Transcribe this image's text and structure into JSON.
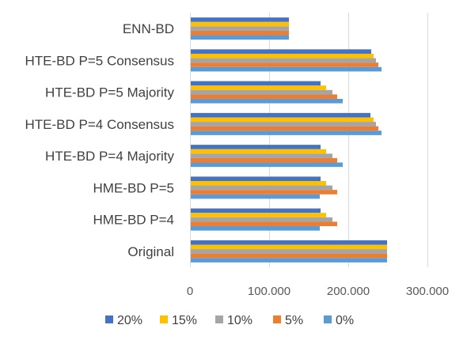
{
  "chart_data": {
    "type": "bar",
    "orientation": "horizontal",
    "categories": [
      "Original",
      "HME-BD P=4",
      "HME-BD P=5",
      "HTE-BD P=4 Majority",
      "HTE-BD P=4 Consensus",
      "HTE-BD P=5 Majority",
      "HTE-BD P=5 Consensus",
      "ENN-BD"
    ],
    "series": [
      {
        "name": "20%",
        "color": "#4472C4",
        "values": [
          249000,
          165000,
          165000,
          165000,
          228000,
          165000,
          229000,
          125000
        ]
      },
      {
        "name": "15%",
        "color": "#FFC000",
        "values": [
          249000,
          172000,
          172000,
          172000,
          232000,
          172000,
          232000,
          125000
        ]
      },
      {
        "name": "10%",
        "color": "#A5A5A5",
        "values": [
          249000,
          180000,
          180000,
          180000,
          235000,
          180000,
          235000,
          125000
        ]
      },
      {
        "name": "5%",
        "color": "#ED7D31",
        "values": [
          249000,
          186000,
          186000,
          186000,
          238000,
          186000,
          238000,
          125000
        ]
      },
      {
        "name": "0%",
        "color": "#5B9BD5",
        "values": [
          249000,
          164000,
          164000,
          193000,
          242000,
          193000,
          242000,
          125000
        ]
      }
    ],
    "xlim": [
      0,
      300000
    ],
    "xticks": [
      0,
      100000,
      200000,
      300000
    ],
    "xtick_labels": [
      "0",
      "100.000",
      "200.000",
      "300.000"
    ],
    "grid": "vertical",
    "legend_position": "bottom",
    "legend_order": [
      "20%",
      "15%",
      "10%",
      "5%",
      "0%"
    ],
    "title": "",
    "xlabel": "",
    "ylabel": ""
  }
}
